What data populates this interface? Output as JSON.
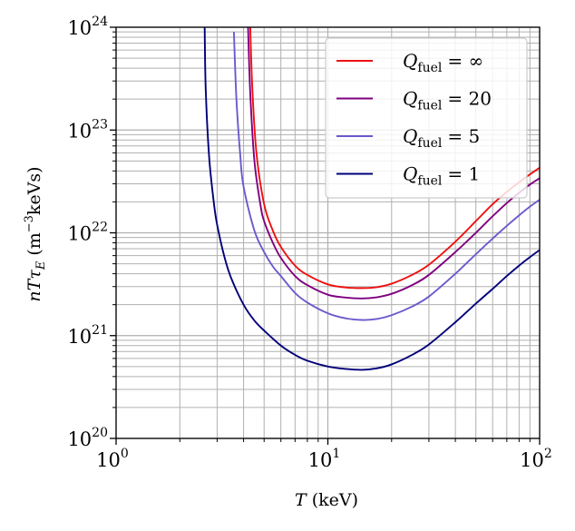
{
  "chart_data": {
    "type": "line",
    "title": "",
    "xlabel": "T (keV)",
    "xlabel_var": "T",
    "xlabel_unit": "(keV)",
    "ylabel": "nTτE (m⁻³keVs)",
    "ylabel_var": "nTτ",
    "ylabel_sub": "E",
    "ylabel_unit_open": "(m",
    "ylabel_unit_exp": "−3",
    "ylabel_unit_close": "keVs)",
    "xscale": "log",
    "yscale": "log",
    "xlim": [
      1,
      100
    ],
    "ylim": [
      1e+20,
      1e+24
    ],
    "grid": true,
    "legend_position": "top-right",
    "x_ticks": [
      {
        "value": 1,
        "base": "10",
        "exp": "0"
      },
      {
        "value": 10,
        "base": "10",
        "exp": "1"
      },
      {
        "value": 100,
        "base": "10",
        "exp": "2"
      }
    ],
    "y_ticks": [
      {
        "value": 1e+20,
        "base": "10",
        "exp": "20"
      },
      {
        "value": 1e+21,
        "base": "10",
        "exp": "21"
      },
      {
        "value": 1e+22,
        "base": "10",
        "exp": "22"
      },
      {
        "value": 1e+23,
        "base": "10",
        "exp": "23"
      },
      {
        "value": 1e+24,
        "base": "10",
        "exp": "24"
      }
    ],
    "series": [
      {
        "name": "Q_fuel = ∞",
        "legend_var": "Q",
        "legend_sub": "fuel",
        "legend_rel": "= ∞",
        "color": "#ee1111",
        "x": [
          4.3,
          4.4,
          4.6,
          5,
          5.5,
          6,
          7,
          8,
          10,
          12,
          14.5,
          17,
          20,
          25,
          30,
          40,
          50,
          60,
          70,
          80,
          90,
          100
        ],
        "y": [
          1e+24,
          2.5e+23,
          6e+22,
          1.9e+22,
          1.05e+22,
          7.3e+21,
          4.8e+21,
          3.9e+21,
          3.15e+21,
          2.95e+21,
          2.9e+21,
          2.96e+21,
          3.2e+21,
          3.9e+21,
          4.9e+21,
          8.2e+21,
          1.3e+22,
          1.9e+22,
          2.5e+22,
          3.1e+22,
          3.7e+22,
          4.3e+22
        ]
      },
      {
        "name": "Q_fuel = 20",
        "legend_var": "Q",
        "legend_sub": "fuel",
        "legend_rel": "= 20",
        "color": "#800080",
        "x": [
          4.2,
          4.3,
          4.5,
          4.8,
          5,
          5.5,
          6,
          7,
          8,
          10,
          12,
          14.5,
          17,
          20,
          25,
          30,
          40,
          50,
          60,
          70,
          80,
          90,
          100
        ],
        "y": [
          1e+24,
          2.3e+23,
          5e+22,
          1.9e+22,
          1.3e+22,
          8e+21,
          5.7e+21,
          3.8e+21,
          3.1e+21,
          2.5e+21,
          2.35e+21,
          2.3e+21,
          2.36e+21,
          2.55e+21,
          3.1e+21,
          3.9e+21,
          6.5e+21,
          1e+22,
          1.45e+22,
          1.95e+22,
          2.45e+22,
          2.95e+22,
          3.4e+22
        ]
      },
      {
        "name": "Q_fuel = 5",
        "legend_var": "Q",
        "legend_sub": "fuel",
        "legend_rel": "= 5",
        "color": "#6a5acd",
        "x": [
          3.6,
          3.7,
          3.85,
          4,
          4.5,
          5,
          5.5,
          6,
          7,
          8,
          10,
          12,
          14.5,
          17,
          20,
          25,
          30,
          40,
          50,
          60,
          70,
          80,
          90,
          100
        ],
        "y": [
          9e+23,
          2e+23,
          6e+22,
          2.8e+22,
          1.05e+22,
          6.5e+21,
          4.7e+21,
          3.8e+21,
          2.6e+21,
          2.1e+21,
          1.65e+21,
          1.48e+21,
          1.42e+21,
          1.45e+21,
          1.58e+21,
          1.92e+21,
          2.4e+21,
          4e+21,
          6.2e+21,
          8.8e+21,
          1.17e+22,
          1.48e+22,
          1.8e+22,
          2.1e+22
        ]
      },
      {
        "name": "Q_fuel = 1",
        "legend_var": "Q",
        "legend_sub": "fuel",
        "legend_rel": "= 1",
        "color": "#00007a",
        "x": [
          2.62,
          2.65,
          2.75,
          2.9,
          3,
          3.25,
          3.5,
          4,
          4.5,
          5,
          6,
          7,
          8,
          10,
          12,
          14.5,
          17,
          20,
          25,
          30,
          40,
          50,
          60,
          70,
          80,
          90,
          100
        ],
        "y": [
          1e+24,
          2.5e+23,
          5.5e+22,
          1.9e+22,
          1.2e+22,
          5.8e+21,
          3.6e+21,
          2e+21,
          1.4e+21,
          1.12e+21,
          8e+20,
          6.5e+20,
          5.7e+20,
          5e+20,
          4.75e+20,
          4.65e+20,
          4.8e+20,
          5.25e+20,
          6.5e+20,
          8.2e+20,
          1.35e+21,
          2.05e+21,
          2.85e+21,
          3.8e+21,
          4.8e+21,
          5.8e+21,
          6.8e+21
        ]
      }
    ]
  }
}
